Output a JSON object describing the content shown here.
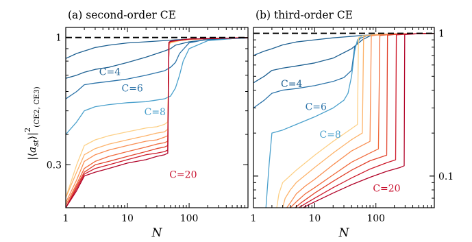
{
  "chart_data": [
    {
      "type": "line",
      "panel_title": "(a) second-order CE",
      "xlabel": "N",
      "ylabel": "|⟨a_st⟩|²_(CE2, CE3)",
      "xscale": "log",
      "yscale": "log",
      "xlim": [
        1,
        900
      ],
      "ylim": [
        0.2,
        1.1
      ],
      "xticks": [
        1,
        10,
        100
      ],
      "xtick_labels": [
        "1",
        "10",
        "100"
      ],
      "yticks": [
        1,
        0.3
      ],
      "ytick_labels": [
        "1",
        "0.3"
      ],
      "reference_line": {
        "y": 1,
        "style": "dashed",
        "color": "#000000"
      },
      "curve_labels": [
        {
          "text": "C=4",
          "x": 5.2,
          "y": 0.7,
          "color": "#1c5f91"
        },
        {
          "text": "C=6",
          "x": 12,
          "y": 0.6,
          "color": "#2a72a8"
        },
        {
          "text": "C=8",
          "x": 28,
          "y": 0.48,
          "color": "#4aa0cc"
        },
        {
          "text": "C=20",
          "x": 80,
          "y": 0.265,
          "color": "#c8102e"
        }
      ],
      "series": [
        {
          "color": "#1c5f91",
          "x": [
            1,
            1.5,
            2,
            3,
            5,
            10,
            20,
            50,
            100,
            200,
            500,
            900
          ],
          "y": [
            0.82,
            0.86,
            0.88,
            0.91,
            0.93,
            0.95,
            0.96,
            0.975,
            0.985,
            0.99,
            0.995,
            0.997
          ]
        },
        {
          "color": "#1c5f91",
          "x": [
            1,
            1.5,
            2,
            3,
            5,
            10,
            20,
            40,
            50,
            60,
            100,
            200,
            500,
            900
          ],
          "y": [
            0.68,
            0.7,
            0.72,
            0.74,
            0.755,
            0.79,
            0.83,
            0.88,
            0.9,
            0.93,
            0.96,
            0.98,
            0.99,
            0.995
          ]
        },
        {
          "color": "#2a72a8",
          "x": [
            1,
            1.5,
            2,
            3,
            5,
            10,
            20,
            40,
            50,
            60,
            70,
            100,
            200,
            500,
            900
          ],
          "y": [
            0.56,
            0.6,
            0.64,
            0.65,
            0.66,
            0.675,
            0.7,
            0.73,
            0.755,
            0.79,
            0.86,
            0.95,
            0.985,
            0.995,
            0.998
          ]
        },
        {
          "color": "#4aa0cc",
          "x": [
            1,
            1.5,
            2,
            3,
            5,
            10,
            20,
            40,
            50,
            60,
            70,
            80,
            100,
            200,
            500,
            900
          ],
          "y": [
            0.4,
            0.45,
            0.5,
            0.52,
            0.53,
            0.54,
            0.545,
            0.56,
            0.575,
            0.62,
            0.7,
            0.8,
            0.9,
            0.97,
            0.99,
            0.995
          ]
        },
        {
          "color": "#fdd086",
          "x": [
            1,
            1.5,
            2,
            3,
            5,
            10,
            20,
            30,
            40,
            45,
            47,
            50,
            70,
            100,
            200,
            500,
            900
          ],
          "y": [
            0.22,
            0.3,
            0.36,
            0.38,
            0.395,
            0.41,
            0.425,
            0.43,
            0.44,
            0.45,
            0.93,
            0.95,
            0.97,
            0.98,
            0.99,
            0.995,
            0.998
          ]
        },
        {
          "color": "#fdb36b",
          "x": [
            1,
            1.5,
            2,
            3,
            5,
            10,
            20,
            30,
            40,
            45,
            47,
            50,
            70,
            100,
            200,
            500,
            900
          ],
          "y": [
            0.22,
            0.28,
            0.33,
            0.35,
            0.365,
            0.38,
            0.395,
            0.405,
            0.41,
            0.42,
            0.94,
            0.955,
            0.97,
            0.98,
            0.99,
            0.995,
            0.998
          ]
        },
        {
          "color": "#f98e52",
          "x": [
            1,
            1.5,
            2,
            3,
            5,
            10,
            20,
            30,
            40,
            45,
            47,
            50,
            70,
            100,
            200,
            500,
            900
          ],
          "y": [
            0.21,
            0.26,
            0.31,
            0.33,
            0.345,
            0.36,
            0.375,
            0.38,
            0.39,
            0.395,
            0.945,
            0.96,
            0.975,
            0.985,
            0.99,
            0.995,
            0.998
          ]
        },
        {
          "color": "#f06a3c",
          "x": [
            1,
            1.5,
            2,
            3,
            5,
            10,
            20,
            30,
            40,
            45,
            47,
            50,
            70,
            100,
            200,
            500,
            900
          ],
          "y": [
            0.205,
            0.25,
            0.29,
            0.31,
            0.325,
            0.34,
            0.355,
            0.365,
            0.37,
            0.375,
            0.95,
            0.96,
            0.975,
            0.985,
            0.99,
            0.995,
            0.998
          ]
        },
        {
          "color": "#e1422b",
          "x": [
            1,
            1.5,
            2,
            3,
            5,
            10,
            20,
            30,
            40,
            45,
            47,
            50,
            70,
            100,
            200,
            500,
            900
          ],
          "y": [
            0.2,
            0.245,
            0.28,
            0.3,
            0.31,
            0.325,
            0.34,
            0.35,
            0.355,
            0.36,
            0.95,
            0.965,
            0.975,
            0.985,
            0.99,
            0.995,
            0.998
          ]
        },
        {
          "color": "#cd1a2b",
          "x": [
            1,
            1.5,
            2,
            3,
            5,
            10,
            20,
            30,
            40,
            45,
            47,
            50,
            70,
            100,
            200,
            500,
            900
          ],
          "y": [
            0.2,
            0.24,
            0.275,
            0.29,
            0.3,
            0.315,
            0.33,
            0.335,
            0.34,
            0.345,
            0.955,
            0.965,
            0.975,
            0.985,
            0.99,
            0.995,
            0.998
          ]
        },
        {
          "color": "#b00026",
          "x": [
            1,
            1.5,
            2,
            3,
            5,
            10,
            20,
            30,
            40,
            45,
            47,
            50,
            70,
            100,
            200,
            500,
            900
          ],
          "y": [
            0.2,
            0.235,
            0.27,
            0.28,
            0.29,
            0.305,
            0.315,
            0.325,
            0.33,
            0.335,
            0.955,
            0.965,
            0.975,
            0.985,
            0.99,
            0.995,
            0.998
          ]
        }
      ]
    },
    {
      "type": "line",
      "panel_title": "(b) third-order CE",
      "xlabel": "N",
      "xscale": "log",
      "yscale": "log",
      "xlim": [
        1,
        900
      ],
      "ylim": [
        0.06,
        1.1
      ],
      "xticks": [
        1,
        10,
        100
      ],
      "xtick_labels": [
        "1",
        "10",
        "100"
      ],
      "yticks": [
        1,
        0.1
      ],
      "ytick_labels": [
        "1",
        "0.1"
      ],
      "reference_line": {
        "y": 1,
        "style": "dashed",
        "color": "#000000"
      },
      "curve_labels": [
        {
          "text": "C=4",
          "x": 4.2,
          "y": 0.42,
          "color": "#1c5f91"
        },
        {
          "text": "C=6",
          "x": 10.5,
          "y": 0.29,
          "color": "#2a72a8"
        },
        {
          "text": "C=8",
          "x": 18,
          "y": 0.185,
          "color": "#4aa0cc"
        },
        {
          "text": "C=20",
          "x": 150,
          "y": 0.078,
          "color": "#c8102e"
        }
      ],
      "series": [
        {
          "color": "#1c5f91",
          "x": [
            1,
            1.5,
            2,
            3,
            5,
            10,
            20,
            50,
            100,
            200,
            500,
            900
          ],
          "y": [
            0.7,
            0.75,
            0.78,
            0.83,
            0.87,
            0.9,
            0.93,
            0.96,
            0.98,
            0.99,
            0.995,
            0.998
          ]
        },
        {
          "color": "#1c5f91",
          "x": [
            1,
            1.5,
            2,
            3,
            5,
            10,
            20,
            40,
            60,
            80,
            100,
            200,
            500,
            900
          ],
          "y": [
            0.45,
            0.5,
            0.55,
            0.57,
            0.59,
            0.62,
            0.67,
            0.78,
            0.9,
            0.96,
            0.98,
            0.99,
            0.995,
            0.998
          ]
        },
        {
          "color": "#2a72a8",
          "x": [
            1,
            1.5,
            2,
            3,
            5,
            10,
            20,
            30,
            40,
            45,
            55,
            70,
            100,
            200,
            500,
            900
          ],
          "y": [
            0.3,
            0.34,
            0.38,
            0.4,
            0.41,
            0.43,
            0.46,
            0.49,
            0.55,
            0.8,
            0.92,
            0.96,
            0.98,
            0.99,
            0.995,
            0.998
          ]
        },
        {
          "color": "#4aa0cc",
          "x": [
            1.6,
            1.8,
            2,
            3,
            5,
            10,
            20,
            30,
            35,
            40,
            45,
            50,
            60,
            100,
            200,
            500,
            900
          ],
          "y": [
            0.06,
            0.12,
            0.2,
            0.21,
            0.23,
            0.26,
            0.3,
            0.34,
            0.38,
            0.5,
            0.75,
            0.9,
            0.96,
            0.98,
            0.99,
            0.995,
            0.998
          ]
        },
        {
          "color": "#fdd086",
          "x": [
            2.4,
            2.6,
            3,
            5,
            10,
            20,
            40,
            50,
            52,
            60,
            100,
            200,
            500,
            900
          ],
          "y": [
            0.06,
            0.075,
            0.09,
            0.11,
            0.14,
            0.175,
            0.215,
            0.23,
            0.93,
            0.96,
            0.98,
            0.99,
            0.995,
            0.998
          ]
        },
        {
          "color": "#fdb36b",
          "x": [
            3,
            3.3,
            4,
            5,
            10,
            20,
            40,
            60,
            63,
            70,
            100,
            200,
            500,
            900
          ],
          "y": [
            0.06,
            0.07,
            0.08,
            0.09,
            0.115,
            0.145,
            0.18,
            0.2,
            0.95,
            0.965,
            0.98,
            0.99,
            0.995,
            0.998
          ]
        },
        {
          "color": "#f98e52",
          "x": [
            3.5,
            4,
            5,
            7,
            10,
            20,
            40,
            80,
            84,
            100,
            200,
            500,
            900
          ],
          "y": [
            0.06,
            0.065,
            0.075,
            0.085,
            0.095,
            0.12,
            0.15,
            0.175,
            0.96,
            0.97,
            0.99,
            0.995,
            0.998
          ]
        },
        {
          "color": "#f06a3c",
          "x": [
            4,
            5,
            7,
            10,
            20,
            40,
            80,
            110,
            116,
            150,
            200,
            500,
            900
          ],
          "y": [
            0.06,
            0.066,
            0.075,
            0.083,
            0.102,
            0.125,
            0.145,
            0.155,
            0.965,
            0.975,
            0.99,
            0.995,
            0.998
          ]
        },
        {
          "color": "#e1422b",
          "x": [
            4.8,
            6,
            8,
            10,
            20,
            40,
            80,
            150,
            155,
            200,
            500,
            900
          ],
          "y": [
            0.06,
            0.065,
            0.071,
            0.076,
            0.092,
            0.11,
            0.128,
            0.14,
            0.97,
            0.98,
            0.995,
            0.998
          ]
        },
        {
          "color": "#cd1a2b",
          "x": [
            5.5,
            7,
            10,
            20,
            40,
            80,
            150,
            210,
            216,
            300,
            500,
            900
          ],
          "y": [
            0.06,
            0.064,
            0.07,
            0.083,
            0.097,
            0.112,
            0.124,
            0.13,
            0.975,
            0.985,
            0.995,
            0.998
          ]
        },
        {
          "color": "#b00026",
          "x": [
            6.5,
            8,
            10,
            20,
            40,
            80,
            150,
            250,
            290,
            296,
            500,
            900
          ],
          "y": [
            0.06,
            0.063,
            0.066,
            0.076,
            0.087,
            0.098,
            0.108,
            0.115,
            0.118,
            0.98,
            0.995,
            0.998
          ]
        }
      ]
    }
  ]
}
